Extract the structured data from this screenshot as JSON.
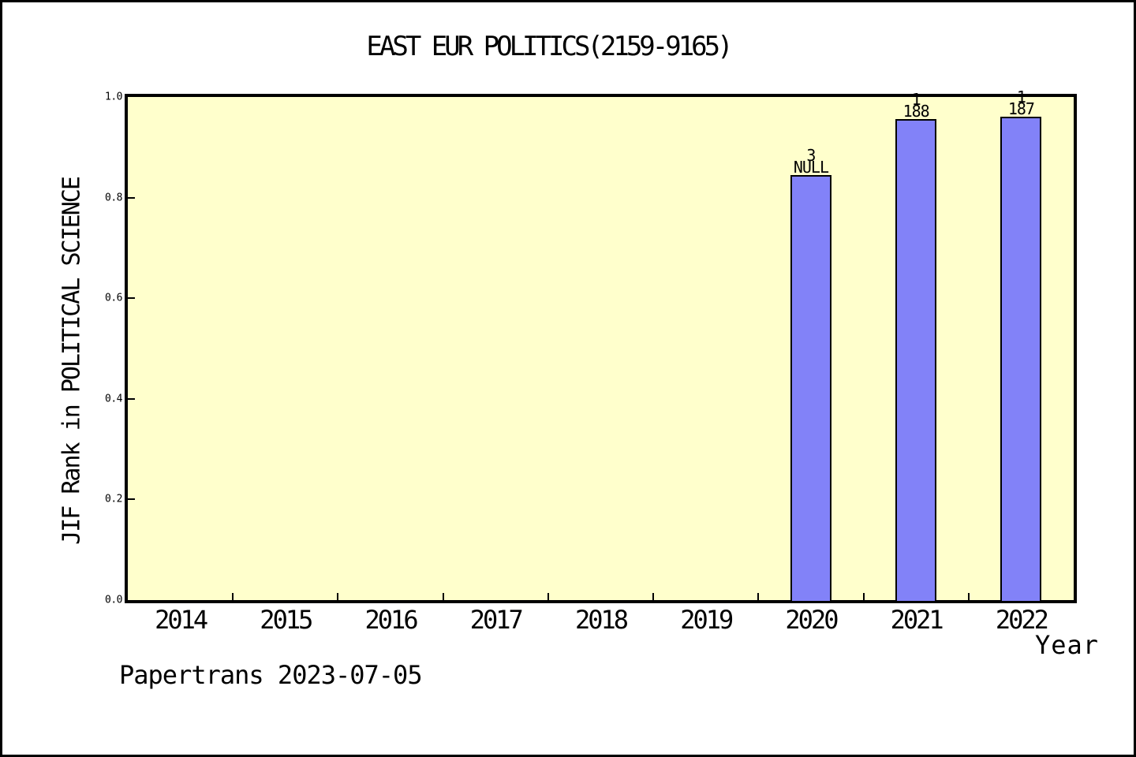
{
  "chart_data": {
    "type": "bar",
    "title": "EAST EUR POLITICS(2159-9165)",
    "xlabel": "Year",
    "ylabel": "JIF Rank in POLITICAL SCIENCE",
    "categories": [
      "2014",
      "2015",
      "2016",
      "2017",
      "2018",
      "2019",
      "2020",
      "2021",
      "2022"
    ],
    "xlim": [
      2013.5,
      2022.5
    ],
    "ylim": [
      0,
      1
    ],
    "y_tick_labels": [
      "0.0",
      "0.2",
      "0.4",
      "0.6",
      "0.8",
      "1.0"
    ],
    "bars": [
      {
        "year": "2020",
        "value": 0.845,
        "label_lines": [
          "3",
          "NULL"
        ]
      },
      {
        "year": "2021",
        "value": 0.956,
        "label_lines": [
          "1",
          "188"
        ]
      },
      {
        "year": "2022",
        "value": 0.961,
        "label_lines": [
          "1",
          "187"
        ]
      }
    ],
    "grid": "off",
    "legend": "none",
    "colors": {
      "bar_fill": "#8282f8",
      "bar_border": "#000000",
      "plot_background": "#ffffcc",
      "axis": "#000000",
      "text": "#000000"
    }
  },
  "footer": {
    "text": "Papertrans 2023-07-05"
  }
}
